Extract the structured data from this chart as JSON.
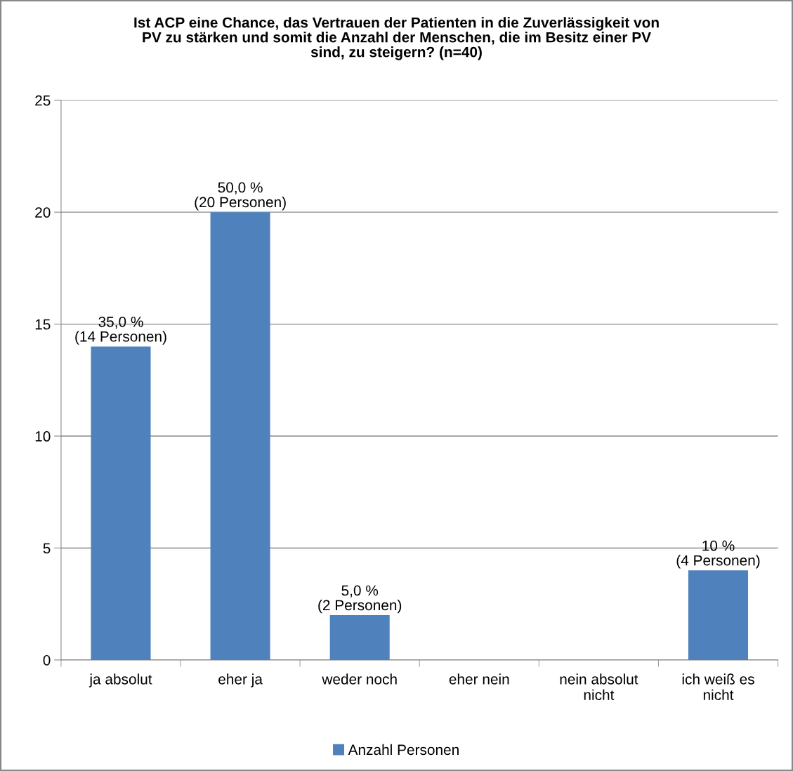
{
  "chart_data": {
    "type": "bar",
    "title": "Ist ACP eine Chance, das Vertrauen der Patienten in die Zuverlässigkeit von\nPV zu stärken und somit die Anzahl der Menschen, die im Besitz einer PV\nsind, zu steigern? (n=40)",
    "categories": [
      "ja absolut",
      "eher ja",
      "weder noch",
      "eher nein",
      "nein absolut\nnicht",
      "ich weiß es\nnicht"
    ],
    "series": [
      {
        "name": "Anzahl Personen",
        "color": "#4f81bd",
        "values": [
          14,
          20,
          2,
          0,
          0,
          4
        ],
        "value_labels": [
          "35,0 %\n(14 Personen)",
          "50,0 %\n(20 Personen)",
          "5,0 %\n(2 Personen)",
          null,
          null,
          "10 %\n(4 Personen)"
        ]
      }
    ],
    "ylim": [
      0,
      25
    ],
    "yticks": [
      0,
      5,
      10,
      15,
      20,
      25
    ],
    "grid": "y",
    "legend": "bottom"
  }
}
